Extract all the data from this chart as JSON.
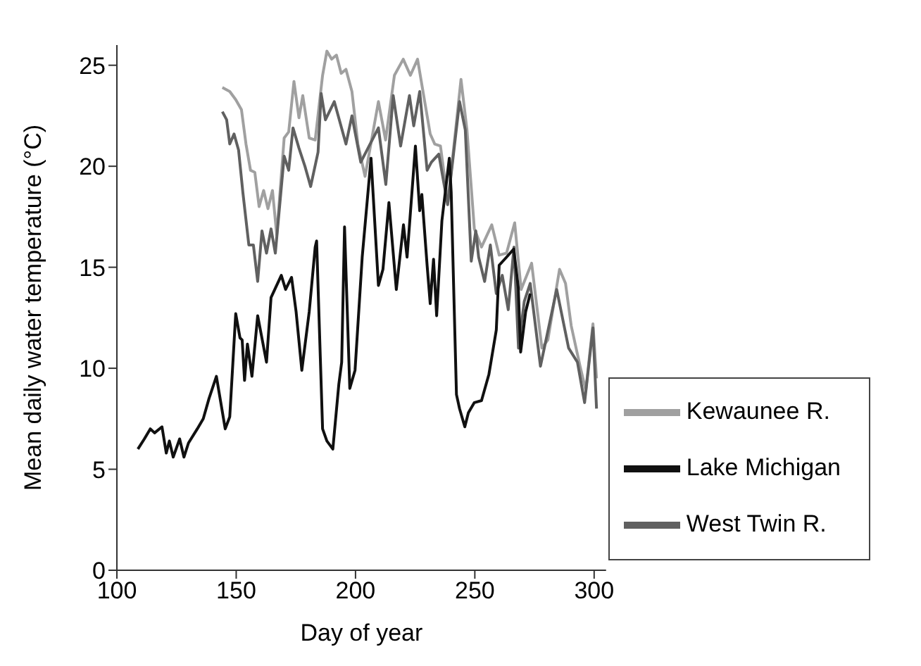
{
  "chart_data": {
    "type": "line",
    "xlabel": "Day of year",
    "ylabel": "Mean daily water temperature (°C)",
    "xlim": [
      100,
      305
    ],
    "xticks": [
      100,
      150,
      200,
      250,
      300
    ],
    "ylim": [
      0,
      26
    ],
    "yticks": [
      0,
      5,
      10,
      15,
      20,
      25
    ],
    "grid": false,
    "legend": "bottom right",
    "marker": "none",
    "line_style": "solid",
    "series": [
      {
        "name": "Kewaunee R.",
        "color": "#a0a0a0",
        "x": [
          144.2,
          147.3,
          149.8,
          152.2,
          154.1,
          156,
          157.8,
          159.6,
          161.5,
          163.3,
          165.2,
          167,
          170.1,
          172,
          174.2,
          176.3,
          177.9,
          180.6,
          183.1,
          186.2,
          188,
          190,
          192,
          194,
          196,
          198.5,
          201,
          204,
          209.6,
          212.6,
          216.3,
          220,
          223,
          226,
          229,
          231.3,
          233.2,
          235.6,
          238.7,
          244.2,
          246.7,
          249.8,
          252.8,
          257.1,
          260.2,
          263.3,
          266.7,
          269.4,
          273.8,
          278.1,
          280.6,
          285.5,
          288,
          290.4,
          294.1,
          296.5,
          299.5,
          301
        ],
        "values": [
          23.9,
          23.7,
          23.3,
          22.8,
          21.1,
          19.8,
          19.7,
          18,
          18.8,
          17.9,
          18.8,
          16.6,
          21.4,
          21.7,
          24.2,
          22.4,
          23.5,
          21.4,
          21.3,
          24.5,
          25.7,
          25.3,
          25.5,
          24.6,
          24.8,
          23.7,
          21.1,
          19.5,
          23.2,
          21.3,
          24.5,
          25.3,
          24.5,
          25.3,
          23.2,
          21.6,
          21.1,
          21,
          18.2,
          24.3,
          21.8,
          16.9,
          16,
          17.1,
          15.6,
          15.7,
          17.2,
          13.9,
          15.2,
          11,
          11.4,
          14.9,
          14.2,
          12.1,
          10.1,
          8.9,
          12.2,
          9.5
        ]
      },
      {
        "name": "West Twin R.",
        "color": "#606060",
        "x": [
          144.2,
          146,
          147.3,
          149.1,
          151,
          152.8,
          155.3,
          157.2,
          159,
          160.8,
          162.7,
          164.6,
          166.4,
          170.1,
          172,
          173.8,
          176.3,
          178.8,
          181.2,
          184.3,
          185.6,
          187.4,
          191.1,
          196,
          198.5,
          202.2,
          209.6,
          212.7,
          215.8,
          218.9,
          222.6,
          224.4,
          226.9,
          230,
          231.8,
          234.9,
          238.6,
          243.6,
          246,
          248.5,
          250.4,
          251.6,
          254.1,
          256.5,
          259,
          261.5,
          264,
          266.4,
          268.3,
          270.7,
          273.2,
          277.5,
          284.3,
          289.3,
          293,
          296,
          299.5,
          301
        ],
        "values": [
          22.7,
          22.3,
          21.1,
          21.6,
          20.8,
          18.7,
          16.1,
          16.1,
          14.3,
          16.8,
          15.7,
          16.9,
          15.7,
          20.5,
          19.8,
          21.9,
          20.9,
          20,
          19,
          20.7,
          23.6,
          22.3,
          23.2,
          21.1,
          22.5,
          20.2,
          21.9,
          19.1,
          23.5,
          21,
          23.5,
          22,
          23.7,
          19.8,
          20.2,
          20.6,
          18.1,
          23.2,
          21.8,
          15.3,
          16.8,
          15.5,
          14.3,
          16.1,
          13.7,
          14.6,
          12.9,
          16,
          11,
          13.3,
          14.2,
          10.1,
          13.9,
          11,
          10.3,
          8.3,
          12,
          8
        ]
      },
      {
        "name": "Lake Michigan",
        "color": "#101010",
        "x": [
          108.8,
          111.5,
          114,
          115.8,
          118.9,
          120.7,
          122,
          123.6,
          126.3,
          128.1,
          130,
          133.7,
          136.2,
          138.6,
          141.7,
          145.4,
          147.3,
          149.8,
          151.6,
          152.5,
          153.5,
          154.7,
          156.6,
          159,
          162.7,
          164.6,
          168.9,
          170.7,
          173.2,
          175.1,
          177.5,
          180.6,
          183.1,
          183.7,
          186.2,
          188,
          190.5,
          193,
          194.2,
          195.4,
          197.6,
          199.8,
          202.8,
          206.5,
          209.6,
          211.5,
          214,
          217.1,
          220.1,
          221.6,
          225.1,
          226.9,
          227.8,
          230,
          231.3,
          232.7,
          234,
          236.2,
          239.3,
          240.1,
          242.3,
          243.6,
          245.8,
          247.3,
          249.8,
          252.8,
          255.9,
          259,
          260.2,
          263.3,
          266.3,
          268.2,
          269.2,
          271.3,
          273.2
        ],
        "values": [
          6,
          6.5,
          7,
          6.8,
          7.1,
          5.8,
          6.4,
          5.6,
          6.5,
          5.6,
          6.3,
          7,
          7.5,
          8.5,
          9.6,
          7,
          7.6,
          12.7,
          11.5,
          11.4,
          9.4,
          11.2,
          9.6,
          12.6,
          10.3,
          13.5,
          14.6,
          13.9,
          14.5,
          12.8,
          9.9,
          12.8,
          16,
          16.3,
          7,
          6.4,
          6,
          9.2,
          10.3,
          17,
          9,
          9.9,
          15.5,
          20.4,
          14.1,
          14.9,
          18.2,
          13.9,
          17.1,
          15.5,
          21,
          17.8,
          18.6,
          15.1,
          13.2,
          15.4,
          12.6,
          17.3,
          20.4,
          18.7,
          8.7,
          8,
          7.1,
          7.8,
          8.3,
          8.4,
          9.7,
          11.9,
          15.1,
          15.5,
          15.9,
          14,
          10.8,
          12.8,
          13.7
        ]
      }
    ]
  }
}
